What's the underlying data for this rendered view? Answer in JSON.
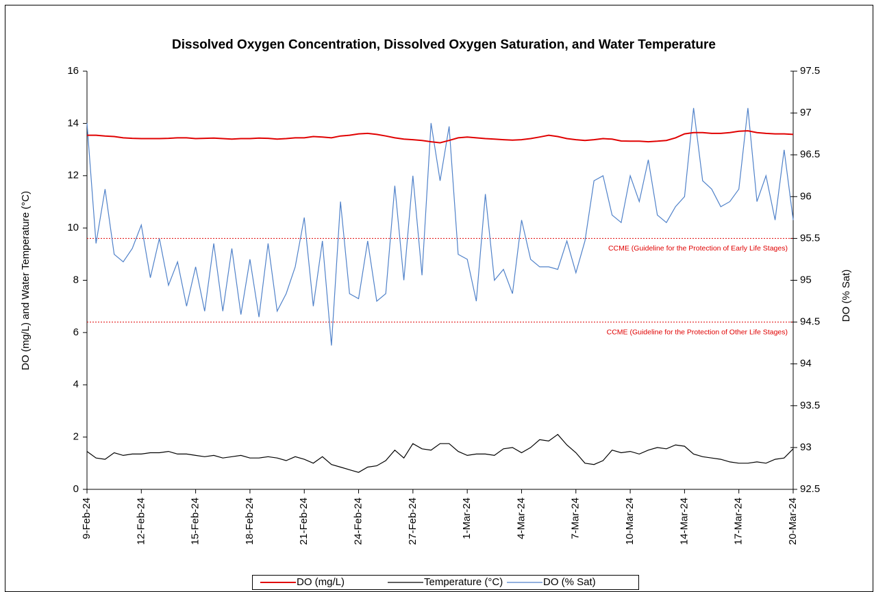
{
  "chart_data": {
    "type": "line",
    "title": "Dissolved Oxygen Concentration, Dissolved Oxygen Saturation, and Water Temperature",
    "y_label": "DO (mg/L) and Water Temperature (°C)",
    "y2_label": "DO (% Sat)",
    "x": [
      0,
      0.5,
      1,
      1.5,
      2,
      2.5,
      3,
      3.5,
      4,
      4.5,
      5,
      5.5,
      6,
      6.5,
      7,
      7.5,
      8,
      8.5,
      9,
      9.5,
      10,
      10.5,
      11,
      11.5,
      12,
      12.5,
      13,
      13.5,
      14,
      14.5,
      15,
      15.5,
      16,
      16.5,
      17,
      17.5,
      18,
      18.5,
      19,
      19.5,
      20,
      20.5,
      21,
      21.5,
      22,
      22.5,
      23,
      23.5,
      24,
      24.5,
      25,
      25.5,
      26,
      26.5,
      27,
      27.5,
      28,
      28.5,
      29,
      29.5,
      30,
      30.5,
      31,
      31.5,
      32,
      32.5,
      33,
      33.5,
      34,
      34.5,
      35,
      35.5,
      36,
      36.5,
      37,
      37.5,
      38,
      38.5,
      39
    ],
    "xlim": [
      0,
      39
    ],
    "xticks": [
      {
        "value": 0,
        "label": "9-Feb-24"
      },
      {
        "value": 3,
        "label": "12-Feb-24"
      },
      {
        "value": 6,
        "label": "15-Feb-24"
      },
      {
        "value": 9,
        "label": "18-Feb-24"
      },
      {
        "value": 12,
        "label": "21-Feb-24"
      },
      {
        "value": 15,
        "label": "24-Feb-24"
      },
      {
        "value": 18,
        "label": "27-Feb-24"
      },
      {
        "value": 21,
        "label": "1-Mar-24"
      },
      {
        "value": 24,
        "label": "4-Mar-24"
      },
      {
        "value": 27,
        "label": "7-Mar-24"
      },
      {
        "value": 30,
        "label": "10-Mar-24"
      },
      {
        "value": 33,
        "label": "14-Mar-24"
      },
      {
        "value": 36,
        "label": "17-Mar-24"
      },
      {
        "value": 39,
        "label": "20-Mar-24"
      }
    ],
    "ylim": [
      0,
      16
    ],
    "yticks": [
      0,
      2,
      4,
      6,
      8,
      10,
      12,
      14,
      16
    ],
    "y2lim": [
      92.5,
      97.5
    ],
    "y2ticks": [
      92.5,
      93,
      93.5,
      94,
      94.5,
      95,
      95.5,
      96,
      96.5,
      97,
      97.5
    ],
    "series": [
      {
        "name": "DO (mg/L)",
        "color": "#e00000",
        "values": [
          13.55,
          13.55,
          13.52,
          13.5,
          13.45,
          13.43,
          13.42,
          13.42,
          13.42,
          13.43,
          13.45,
          13.45,
          13.42,
          13.43,
          13.44,
          13.42,
          13.4,
          13.42,
          13.42,
          13.44,
          13.43,
          13.4,
          13.42,
          13.45,
          13.45,
          13.5,
          13.48,
          13.45,
          13.52,
          13.55,
          13.6,
          13.62,
          13.58,
          13.52,
          13.45,
          13.4,
          13.38,
          13.35,
          13.3,
          13.26,
          13.35,
          13.45,
          13.48,
          13.45,
          13.42,
          13.4,
          13.38,
          13.36,
          13.38,
          13.42,
          13.48,
          13.55,
          13.5,
          13.42,
          13.38,
          13.35,
          13.38,
          13.42,
          13.4,
          13.33,
          13.32,
          13.32,
          13.3,
          13.32,
          13.35,
          13.45,
          13.6,
          13.65,
          13.65,
          13.62,
          13.62,
          13.65,
          13.7,
          13.72,
          13.65,
          13.62,
          13.6,
          13.6,
          13.58
        ]
      },
      {
        "name": "Temperature (°C)",
        "color": "#000000",
        "values": [
          1.45,
          1.2,
          1.15,
          1.4,
          1.3,
          1.35,
          1.35,
          1.4,
          1.4,
          1.45,
          1.35,
          1.35,
          1.3,
          1.25,
          1.3,
          1.2,
          1.25,
          1.3,
          1.2,
          1.2,
          1.25,
          1.2,
          1.1,
          1.25,
          1.15,
          1.0,
          1.25,
          0.95,
          0.85,
          0.75,
          0.65,
          0.85,
          0.9,
          1.1,
          1.5,
          1.2,
          1.75,
          1.55,
          1.5,
          1.75,
          1.75,
          1.45,
          1.3,
          1.35,
          1.35,
          1.3,
          1.55,
          1.6,
          1.4,
          1.6,
          1.9,
          1.85,
          2.1,
          1.7,
          1.4,
          1.0,
          0.95,
          1.1,
          1.5,
          1.4,
          1.45,
          1.35,
          1.5,
          1.6,
          1.55,
          1.7,
          1.65,
          1.35,
          1.25,
          1.2,
          1.15,
          1.05,
          1.0,
          1.0,
          1.05,
          1.0,
          1.15,
          1.2,
          1.55
        ]
      },
      {
        "name": "DO (% Sat)",
        "color": "#4f81c9",
        "axis": "y2",
        "values": [
          96.88,
          95.44,
          96.09,
          95.31,
          95.22,
          95.38,
          95.66,
          95.03,
          95.5,
          94.94,
          95.22,
          94.69,
          95.16,
          94.63,
          95.44,
          94.63,
          95.38,
          94.59,
          95.25,
          94.56,
          95.44,
          94.63,
          94.84,
          95.16,
          95.75,
          94.69,
          95.47,
          94.22,
          95.94,
          94.84,
          94.78,
          95.47,
          94.75,
          94.84,
          96.13,
          95.0,
          96.25,
          95.06,
          96.88,
          96.19,
          96.84,
          95.31,
          95.25,
          94.75,
          96.03,
          95.0,
          95.13,
          94.84,
          95.72,
          95.25,
          95.16,
          95.16,
          95.13,
          95.47,
          95.09,
          95.47,
          96.19,
          96.25,
          95.78,
          95.69,
          96.25,
          95.94,
          96.44,
          95.78,
          95.69,
          95.88,
          96.0,
          97.06,
          96.19,
          96.09,
          95.88,
          95.94,
          96.09,
          97.06,
          95.94,
          96.25,
          95.72,
          96.56,
          95.72
        ]
      }
    ],
    "annotations": [
      {
        "text": "CCME (Guideline for the Protection of Early Life Stages)",
        "y2": 95.5,
        "color": "#e00000"
      },
      {
        "text": "CCME (Guideline for the Protection of Other Life Stages)",
        "y2": 94.5,
        "color": "#e00000"
      }
    ],
    "legend": "bottom"
  }
}
